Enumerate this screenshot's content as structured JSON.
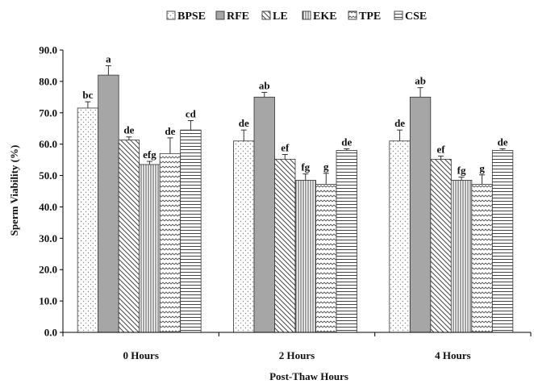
{
  "chart_data": {
    "type": "bar",
    "title": "",
    "xlabel": "Post-Thaw Hours",
    "ylabel": "Sperm Viability (%)",
    "ylim": [
      0,
      90
    ],
    "yticks": [
      "0.0",
      "10.0",
      "20.0",
      "30.0",
      "40.0",
      "50.0",
      "60.0",
      "70.0",
      "80.0",
      "90.0"
    ],
    "categories": [
      "0 Hours",
      "2 Hours",
      "4 Hours"
    ],
    "legend_position": "top",
    "series": [
      {
        "name": "BPSE",
        "values": [
          71.5,
          61.0,
          61.0
        ],
        "errors": [
          2.0,
          3.5,
          3.5
        ],
        "labels": [
          "bc",
          "de",
          "de"
        ],
        "pattern": "dots"
      },
      {
        "name": "RFE",
        "values": [
          82.0,
          75.0,
          75.0
        ],
        "errors": [
          3.0,
          1.5,
          3.0
        ],
        "labels": [
          "a",
          "ab",
          "ab"
        ],
        "pattern": "solid-gray",
        "color": "#a6a6a6"
      },
      {
        "name": "LE",
        "values": [
          61.3,
          55.2,
          55.2
        ],
        "errors": [
          1.0,
          1.5,
          1.0
        ],
        "labels": [
          "de",
          "ef",
          "ef"
        ],
        "pattern": "diag-down"
      },
      {
        "name": "EKE",
        "values": [
          53.5,
          48.5,
          48.5
        ],
        "errors": [
          1.0,
          2.0,
          1.0
        ],
        "labels": [
          "efg",
          "fg",
          "fg"
        ],
        "pattern": "vertical"
      },
      {
        "name": "TPE",
        "values": [
          57.0,
          47.2,
          47.2
        ],
        "errors": [
          5.0,
          3.5,
          3.0
        ],
        "labels": [
          "de",
          "g",
          "g"
        ],
        "pattern": "zigzag"
      },
      {
        "name": "CSE",
        "values": [
          64.5,
          58.0,
          58.0
        ],
        "errors": [
          3.0,
          0.5,
          0.5
        ],
        "labels": [
          "cd",
          "de",
          "de"
        ],
        "pattern": "horizontal"
      }
    ]
  }
}
